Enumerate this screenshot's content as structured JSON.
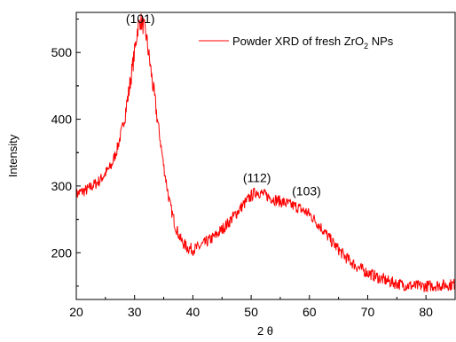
{
  "chart_data": {
    "type": "line",
    "title": "",
    "xlabel": "2 θ",
    "ylabel": "Intensity",
    "xlim": [
      20,
      85
    ],
    "ylim": [
      130,
      560
    ],
    "x_ticks": [
      20,
      30,
      40,
      50,
      60,
      70,
      80
    ],
    "y_ticks": [
      200,
      300,
      400,
      500
    ],
    "grid": false,
    "legend": {
      "placement": "top-right",
      "text_main": "Powder XRD of fresh ZrO",
      "text_sub": "2",
      "text_tail": " NPs"
    },
    "annotations": [
      {
        "text": "(101)",
        "x": 31,
        "y": 560
      },
      {
        "text": "(112)",
        "x": 51,
        "y": 322
      },
      {
        "text": "(103)",
        "x": 59.5,
        "y": 302
      }
    ],
    "series": [
      {
        "name": "Powder XRD of fresh ZrO2 NPs",
        "color": "#ff0000",
        "x": [
          20,
          22,
          24,
          26,
          27,
          28,
          29,
          30,
          30.5,
          31,
          31.5,
          32,
          33,
          34,
          35,
          36,
          37,
          38,
          39,
          40,
          41,
          42,
          44,
          46,
          48,
          50,
          51,
          52,
          54,
          56,
          58,
          60,
          62,
          64,
          66,
          68,
          70,
          72,
          74,
          76,
          78,
          80,
          82,
          84,
          85
        ],
        "y": [
          288,
          295,
          308,
          330,
          355,
          390,
          440,
          500,
          535,
          548,
          540,
          525,
          460,
          395,
          330,
          275,
          240,
          218,
          208,
          205,
          208,
          214,
          226,
          244,
          265,
          285,
          292,
          288,
          280,
          274,
          268,
          258,
          238,
          215,
          195,
          180,
          170,
          162,
          156,
          152,
          150,
          150,
          151,
          152,
          153
        ],
        "noise": 9
      }
    ]
  }
}
